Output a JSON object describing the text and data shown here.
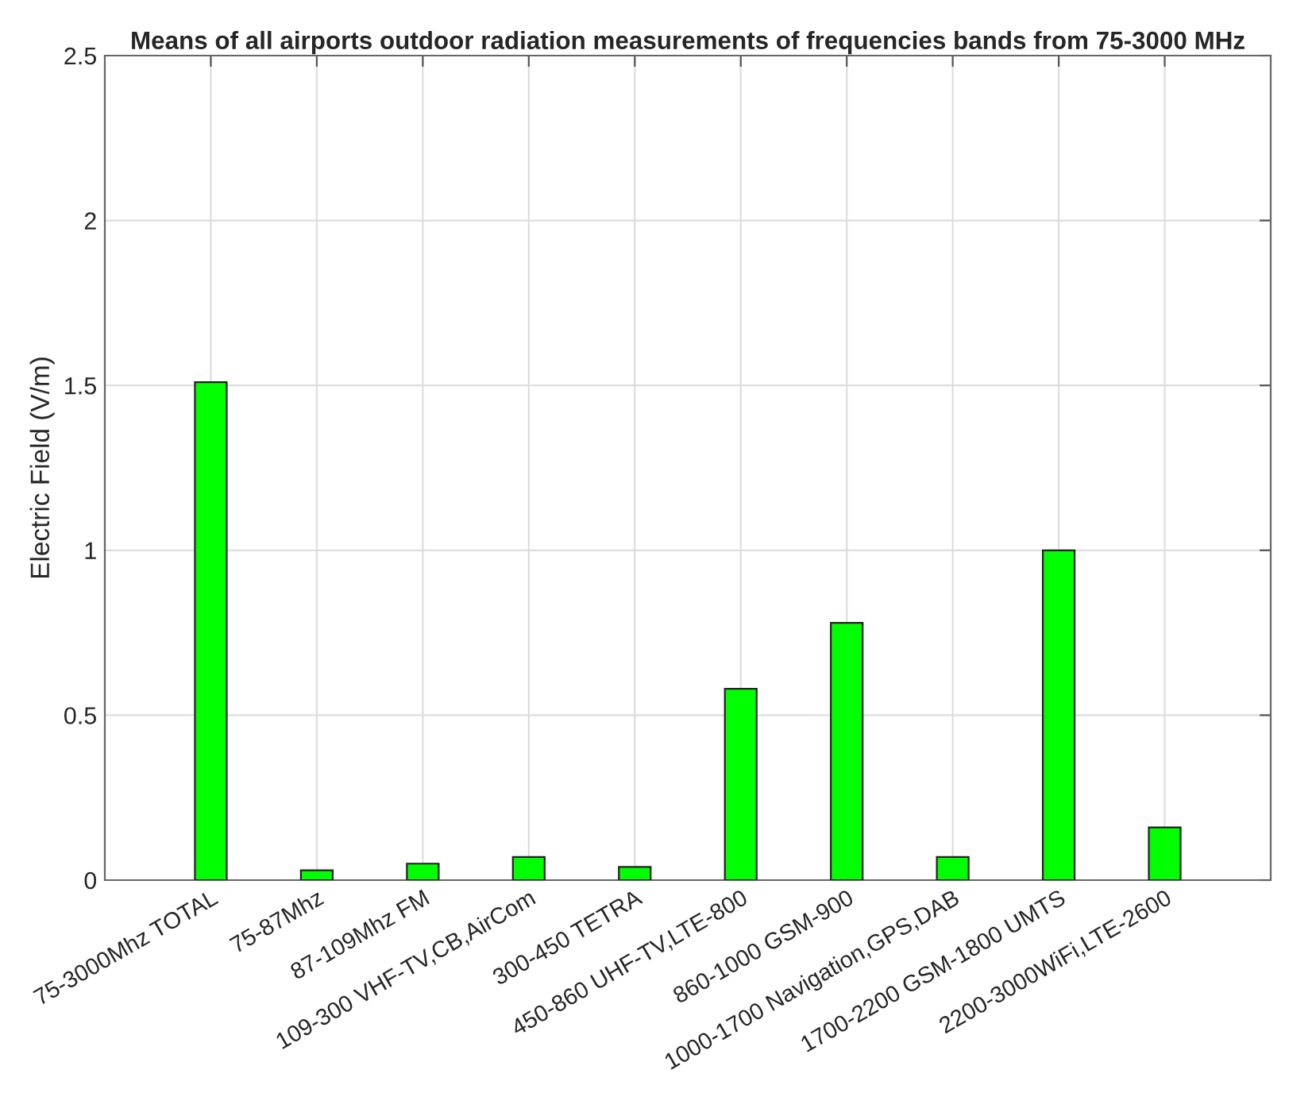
{
  "chart_data": {
    "type": "bar",
    "title": "Means of all airports outdoor radiation measurements of frequencies bands from 75-3000 MHz",
    "ylabel": "Electric Field (V/m)",
    "categories": [
      "75-3000Mhz TOTAL",
      "75-87Mhz",
      "87-109Mhz FM",
      "109-300 VHF-TV,CB,AirCom",
      "300-450 TETRA",
      "450-860 UHF-TV,LTE-800",
      "860-1000 GSM-900",
      "1000-1700 Navigation,GPS,DAB",
      "1700-2200 GSM-1800 UMTS",
      "2200-3000WiFi,LTE-2600"
    ],
    "values": [
      1.51,
      0.03,
      0.05,
      0.07,
      0.04,
      0.58,
      0.78,
      0.07,
      1.0,
      0.16
    ],
    "color": "#00ff00",
    "ylim": [
      0,
      2.5
    ],
    "yticks": [
      0,
      0.5,
      1,
      1.5,
      2,
      2.5
    ],
    "grid": true,
    "legend": false
  }
}
